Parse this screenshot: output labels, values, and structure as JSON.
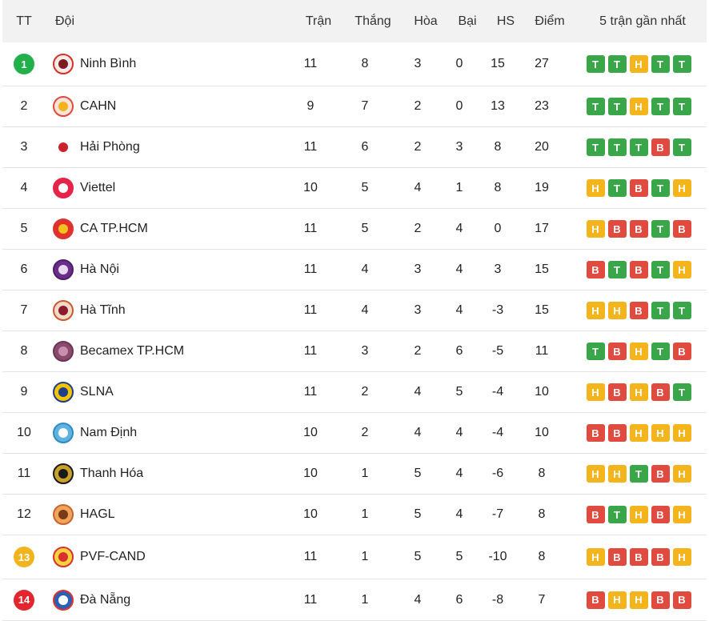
{
  "header": {
    "rank": "TT",
    "team": "Đội",
    "played": "Trận",
    "won": "Thắng",
    "drawn": "Hòa",
    "lost": "Bại",
    "gd": "HS",
    "points": "Điểm",
    "form": "5 trận gần nhất"
  },
  "colors": {
    "win": "#3aa64a",
    "draw": "#f3b41c",
    "loss": "#e04a3f",
    "leader_badge": "#22b04b",
    "playoff_badge": "#f2b41c",
    "relegation_badge": "#e3262d"
  },
  "teams": [
    {
      "rank": "1",
      "badge": "green",
      "name": "Ninh Bình",
      "logo_icon": "ninh-binh-crest-icon",
      "played": "11",
      "won": "8",
      "drawn": "3",
      "lost": "0",
      "gd": "15",
      "points": "27",
      "form": [
        "T",
        "T",
        "H",
        "T",
        "T"
      ]
    },
    {
      "rank": "2",
      "badge": "",
      "name": "CAHN",
      "logo_icon": "cahn-crest-icon",
      "played": "9",
      "won": "7",
      "drawn": "2",
      "lost": "0",
      "gd": "13",
      "points": "23",
      "form": [
        "T",
        "T",
        "H",
        "T",
        "T"
      ]
    },
    {
      "rank": "3",
      "badge": "",
      "name": "Hải Phòng",
      "logo_icon": "hai-phong-crest-icon",
      "played": "11",
      "won": "6",
      "drawn": "2",
      "lost": "3",
      "gd": "8",
      "points": "20",
      "form": [
        "T",
        "T",
        "T",
        "B",
        "T"
      ]
    },
    {
      "rank": "4",
      "badge": "",
      "name": "Viettel",
      "logo_icon": "viettel-crest-icon",
      "played": "10",
      "won": "5",
      "drawn": "4",
      "lost": "1",
      "gd": "8",
      "points": "19",
      "form": [
        "H",
        "T",
        "B",
        "T",
        "H"
      ]
    },
    {
      "rank": "5",
      "badge": "",
      "name": "CA TP.HCM",
      "logo_icon": "ca-tphcm-crest-icon",
      "played": "11",
      "won": "5",
      "drawn": "2",
      "lost": "4",
      "gd": "0",
      "points": "17",
      "form": [
        "H",
        "B",
        "B",
        "T",
        "B"
      ]
    },
    {
      "rank": "6",
      "badge": "",
      "name": "Hà Nội",
      "logo_icon": "ha-noi-crest-icon",
      "played": "11",
      "won": "4",
      "drawn": "3",
      "lost": "4",
      "gd": "3",
      "points": "15",
      "form": [
        "B",
        "T",
        "B",
        "T",
        "H"
      ]
    },
    {
      "rank": "7",
      "badge": "",
      "name": "Hà Tĩnh",
      "logo_icon": "ha-tinh-crest-icon",
      "played": "11",
      "won": "4",
      "drawn": "3",
      "lost": "4",
      "gd": "-3",
      "points": "15",
      "form": [
        "H",
        "H",
        "B",
        "T",
        "T"
      ]
    },
    {
      "rank": "8",
      "badge": "",
      "name": "Becamex TP.HCM",
      "logo_icon": "becamex-crest-icon",
      "played": "11",
      "won": "3",
      "drawn": "2",
      "lost": "6",
      "gd": "-5",
      "points": "11",
      "form": [
        "T",
        "B",
        "H",
        "T",
        "B"
      ]
    },
    {
      "rank": "9",
      "badge": "",
      "name": "SLNA",
      "logo_icon": "slna-crest-icon",
      "played": "11",
      "won": "2",
      "drawn": "4",
      "lost": "5",
      "gd": "-4",
      "points": "10",
      "form": [
        "H",
        "B",
        "H",
        "B",
        "T"
      ]
    },
    {
      "rank": "10",
      "badge": "",
      "name": "Nam Định",
      "logo_icon": "nam-dinh-crest-icon",
      "played": "10",
      "won": "2",
      "drawn": "4",
      "lost": "4",
      "gd": "-4",
      "points": "10",
      "form": [
        "B",
        "B",
        "H",
        "H",
        "H"
      ]
    },
    {
      "rank": "11",
      "badge": "",
      "name": "Thanh Hóa",
      "logo_icon": "thanh-hoa-crest-icon",
      "played": "10",
      "won": "1",
      "drawn": "5",
      "lost": "4",
      "gd": "-6",
      "points": "8",
      "form": [
        "H",
        "H",
        "T",
        "B",
        "H"
      ]
    },
    {
      "rank": "12",
      "badge": "",
      "name": "HAGL",
      "logo_icon": "hagl-crest-icon",
      "played": "10",
      "won": "1",
      "drawn": "5",
      "lost": "4",
      "gd": "-7",
      "points": "8",
      "form": [
        "B",
        "T",
        "H",
        "B",
        "H"
      ]
    },
    {
      "rank": "13",
      "badge": "yellow",
      "name": "PVF-CAND",
      "logo_icon": "pvf-cand-crest-icon",
      "played": "11",
      "won": "1",
      "drawn": "5",
      "lost": "5",
      "gd": "-10",
      "points": "8",
      "form": [
        "H",
        "B",
        "B",
        "B",
        "H"
      ]
    },
    {
      "rank": "14",
      "badge": "red",
      "name": "Đà Nẵng",
      "logo_icon": "da-nang-crest-icon",
      "played": "11",
      "won": "1",
      "drawn": "4",
      "lost": "6",
      "gd": "-8",
      "points": "7",
      "form": [
        "B",
        "H",
        "H",
        "B",
        "B"
      ]
    }
  ]
}
